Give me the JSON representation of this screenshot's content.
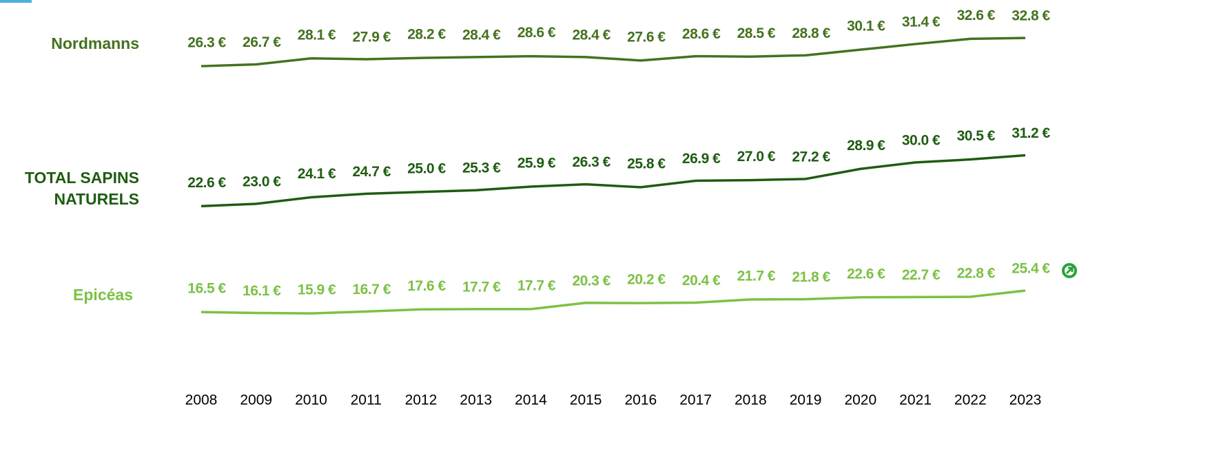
{
  "chart_data": {
    "type": "line",
    "categories": [
      "2008",
      "2009",
      "2010",
      "2011",
      "2012",
      "2013",
      "2014",
      "2015",
      "2016",
      "2017",
      "2018",
      "2019",
      "2020",
      "2021",
      "2022",
      "2023"
    ],
    "series": [
      {
        "name": "Nordmanns",
        "color": "#44721f",
        "ylim": [
          22.5,
          35.2
        ],
        "values": [
          26.3,
          26.7,
          28.1,
          27.9,
          28.2,
          28.4,
          28.6,
          28.4,
          27.6,
          28.6,
          28.5,
          28.8,
          30.1,
          31.4,
          32.6,
          32.8
        ],
        "value_labels": [
          "26.3 €",
          "26.7 €",
          "28.1 €",
          "27.9 €",
          "28.2 €",
          "28.4 €",
          "28.6 €",
          "28.4 €",
          "27.6 €",
          "28.6 €",
          "28.5 €",
          "28.8 €",
          "30.1 €",
          "31.4 €",
          "32.6 €",
          "32.8 €"
        ]
      },
      {
        "name": "TOTAL SAPINS NATURELS",
        "color": "#1f5c12",
        "ylim": [
          20.2,
          36.5
        ],
        "values": [
          22.6,
          23.0,
          24.1,
          24.7,
          25.0,
          25.3,
          25.9,
          26.3,
          25.8,
          26.9,
          27.0,
          27.2,
          28.9,
          30.0,
          30.5,
          31.2
        ],
        "value_labels": [
          "22.6 €",
          "23.0 €",
          "24.1 €",
          "24.7 €",
          "25.0 €",
          "25.3 €",
          "25.9 €",
          "26.3 €",
          "25.8 €",
          "26.9 €",
          "27.0 €",
          "27.2 €",
          "28.9 €",
          "30.0 €",
          "30.5 €",
          "31.2 €"
        ]
      },
      {
        "name": "Epicéas",
        "color": "#7cc144",
        "ylim": [
          8.8,
          37.4
        ],
        "values": [
          16.5,
          16.1,
          15.9,
          16.7,
          17.6,
          17.7,
          17.7,
          20.3,
          20.2,
          20.4,
          21.7,
          21.8,
          22.6,
          22.7,
          22.8,
          25.4
        ],
        "value_labels": [
          "16.5 €",
          "16.1 €",
          "15.9 €",
          "16.7 €",
          "17.6 €",
          "17.7 €",
          "17.7 €",
          "20.3 €",
          "20.2 €",
          "20.4 €",
          "21.7 €",
          "21.8 €",
          "22.6 €",
          "22.7 €",
          "22.8 €",
          "25.4 €"
        ]
      }
    ]
  }
}
